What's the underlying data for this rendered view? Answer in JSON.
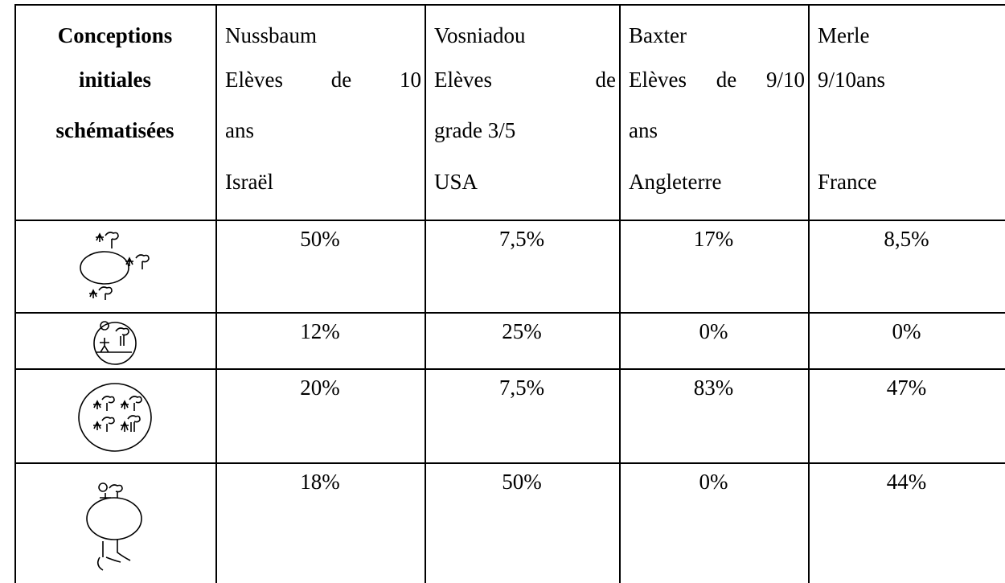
{
  "header": {
    "concept": [
      "Conceptions",
      "initiales",
      "schématisées"
    ],
    "columns": [
      [
        "Nussbaum",
        "Elèves de 10",
        "ans",
        "Israël"
      ],
      [
        "Vosniadou",
        "Elèves de",
        "grade 3/5",
        "USA"
      ],
      [
        "Baxter",
        "Elèves de 9/10",
        "ans",
        "Angleterre"
      ],
      [
        "Merle",
        "9/10ans",
        "France"
      ]
    ]
  },
  "table": {
    "rows": [
      [
        "50%",
        "7,5%",
        "17%",
        "8,5%"
      ],
      [
        "12%",
        "25%",
        "0%",
        "0%"
      ],
      [
        "20%",
        "7,5%",
        "83%",
        "47%"
      ],
      [
        "18%",
        "50%",
        "0%",
        "44%"
      ]
    ]
  }
}
